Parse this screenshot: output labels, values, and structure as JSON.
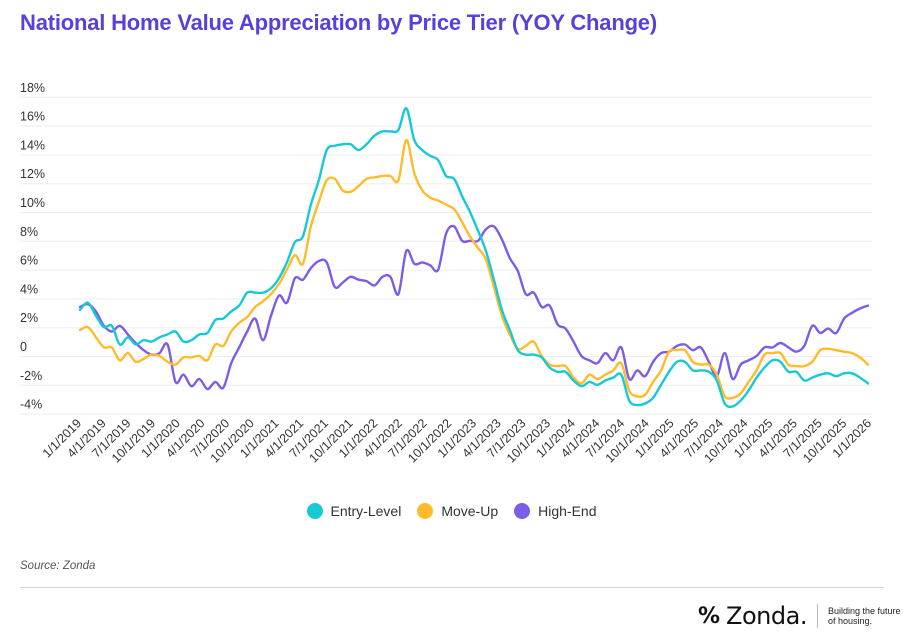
{
  "title": "National Home Value Appreciation by Price Tier (YOY Change)",
  "source": "Source: Zonda",
  "brand": {
    "mark": "%",
    "name": "Zonda.",
    "tagline": "Building the future of housing."
  },
  "chart_data": {
    "type": "line",
    "title": "National Home Value Appreciation by Price Tier (YOY Change)",
    "xlabel": "",
    "ylabel": "",
    "ylim": [
      -4,
      18
    ],
    "yticks": [
      18,
      16,
      14,
      12,
      10,
      8,
      6,
      4,
      2,
      0,
      -2,
      -4
    ],
    "ytick_labels": [
      "18%",
      "16%",
      "14%",
      "12%",
      "10%",
      "8%",
      "6%",
      "4%",
      "2%",
      "0",
      "-2%",
      "-4%"
    ],
    "grid": true,
    "legend_position": "bottom-center",
    "x_tick_labels": [
      "1/1/2019",
      "4/1/2019",
      "7/1/2019",
      "10/1/2019",
      "1/1/2020",
      "4/1/2020",
      "7/1/2020",
      "10/1/2020",
      "1/1/2021",
      "4/1/2021",
      "7/1/2021",
      "10/1/2021",
      "1/1/2022",
      "4/1/2022",
      "7/1/2022",
      "10/1/2022",
      "1/1/2023",
      "4/1/2023",
      "7/1/2023",
      "10/1/2023",
      "1/1/2024",
      "4/1/2024",
      "7/1/2024",
      "10/1/2024",
      "1/1/2025",
      "4/1/2025",
      "7/1/2024",
      "10/1/2024",
      "1/1/2025",
      "4/1/2025",
      "7/1/2025",
      "10/1/2025",
      "1/1/2026"
    ],
    "series": [
      {
        "name": "Entry-Level",
        "color": "#17c9d6",
        "values": [
          3.2,
          3.7,
          2.8,
          2.0,
          2.1,
          0.8,
          1.3,
          0.8,
          1.1,
          1.0,
          1.3,
          1.5,
          1.7,
          1.0,
          1.1,
          1.5,
          1.6,
          2.5,
          2.6,
          3.1,
          3.5,
          4.4,
          4.4,
          4.4,
          4.7,
          5.4,
          6.5,
          7.9,
          8.3,
          10.5,
          12.2,
          14.3,
          14.6,
          14.7,
          14.7,
          14.3,
          14.7,
          15.3,
          15.6,
          15.6,
          15.7,
          17.2,
          15.0,
          14.3,
          13.9,
          13.6,
          12.5,
          12.3,
          11.1,
          10.0,
          8.7,
          7.3,
          5.3,
          3.2,
          1.8,
          0.4,
          0.1,
          0.1,
          -0.1,
          -0.8,
          -1.1,
          -1.1,
          -1.7,
          -2.1,
          -1.8,
          -2.0,
          -1.7,
          -1.5,
          -1.3,
          -3.1,
          -3.4,
          -3.3,
          -2.9,
          -2.0,
          -1.1,
          -0.4,
          -0.4,
          -1.0,
          -1.0,
          -1.1,
          -1.7,
          -3.3,
          -3.5,
          -3.1,
          -2.4,
          -1.5,
          -0.8,
          -0.3,
          -0.4,
          -1.1,
          -1.1,
          -1.7,
          -1.5,
          -1.3,
          -1.2,
          -1.4,
          -1.2,
          -1.2,
          -1.5,
          -1.9
        ]
      },
      {
        "name": "Move-Up",
        "color": "#ffbb29",
        "values": [
          1.8,
          2.0,
          1.3,
          0.6,
          0.6,
          -0.3,
          0.2,
          -0.4,
          -0.2,
          0.1,
          0.0,
          -0.4,
          -0.6,
          -0.1,
          -0.1,
          0.0,
          -0.3,
          0.8,
          0.7,
          1.7,
          2.3,
          2.7,
          3.4,
          3.8,
          4.3,
          5.0,
          6.0,
          7.0,
          6.4,
          9.0,
          10.7,
          12.2,
          12.3,
          11.5,
          11.4,
          11.8,
          12.3,
          12.4,
          12.5,
          12.5,
          12.2,
          15.0,
          12.7,
          11.5,
          11.0,
          10.8,
          10.5,
          10.2,
          9.3,
          8.3,
          7.5,
          6.7,
          4.8,
          2.8,
          1.5,
          0.5,
          0.7,
          1.0,
          0.0,
          -0.6,
          -0.7,
          -0.7,
          -1.5,
          -1.9,
          -1.3,
          -1.6,
          -1.3,
          -1.0,
          -0.5,
          -2.4,
          -2.8,
          -2.7,
          -1.8,
          -1.0,
          0.3,
          0.4,
          0.4,
          -0.4,
          -0.6,
          -0.6,
          -1.3,
          -2.8,
          -2.9,
          -2.6,
          -1.8,
          -1.0,
          0.1,
          0.2,
          0.2,
          -0.6,
          -0.7,
          -0.7,
          -0.4,
          0.4,
          0.5,
          0.4,
          0.3,
          0.2,
          -0.1,
          -0.6
        ]
      },
      {
        "name": "High-End",
        "color": "#7d5ce8",
        "values": [
          3.4,
          3.6,
          3.1,
          2.1,
          1.7,
          2.1,
          1.5,
          0.9,
          0.4,
          0.1,
          0.2,
          0.8,
          -1.8,
          -1.3,
          -2.1,
          -1.6,
          -2.3,
          -1.8,
          -2.2,
          -0.5,
          0.6,
          1.7,
          2.6,
          1.1,
          2.8,
          4.2,
          3.7,
          5.4,
          5.3,
          6.1,
          6.6,
          6.5,
          4.8,
          5.1,
          5.5,
          5.3,
          5.2,
          4.9,
          5.5,
          5.5,
          4.3,
          7.3,
          6.4,
          6.5,
          6.3,
          6.0,
          8.5,
          9.0,
          8.0,
          8.0,
          8.0,
          8.8,
          9.0,
          8.1,
          6.8,
          5.9,
          4.3,
          4.4,
          3.4,
          3.5,
          2.2,
          1.9,
          1.0,
          0.0,
          -0.3,
          -0.5,
          0.2,
          -0.3,
          0.6,
          -1.6,
          -1.0,
          -1.4,
          -0.4,
          0.2,
          0.3,
          0.7,
          0.8,
          0.4,
          0.6,
          -0.4,
          -1.4,
          0.2,
          -1.6,
          -0.6,
          -0.3,
          0.0,
          0.6,
          0.6,
          0.9,
          0.6,
          0.3,
          0.7,
          2.1,
          1.6,
          1.9,
          1.6,
          2.6,
          3.0,
          3.3,
          3.5
        ]
      }
    ]
  }
}
